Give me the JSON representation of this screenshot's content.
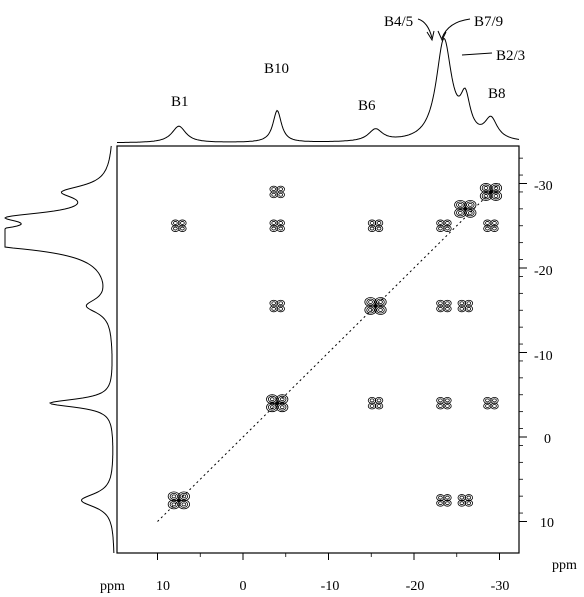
{
  "figure": {
    "peak_labels": [
      "B1",
      "B10",
      "B6",
      "B4/5",
      "B7/9",
      "B2/3",
      "B8"
    ],
    "x_axis": {
      "unit": "ppm",
      "ticks": [
        "10",
        "0",
        "-10",
        "-20",
        "-30"
      ]
    },
    "y_axis": {
      "unit": "ppm",
      "ticks": [
        "-30",
        "-20",
        "-10",
        "0",
        "10"
      ]
    }
  },
  "chart_data": {
    "type": "heatmap",
    "title": "",
    "xlabel": "ppm",
    "ylabel": "ppm",
    "xlim": [
      10,
      -35
    ],
    "ylim": [
      -35,
      10
    ],
    "x_ticks": [
      10,
      0,
      -10,
      -20,
      -30
    ],
    "y_ticks": [
      -30,
      -20,
      -10,
      0,
      10
    ],
    "peaks": [
      {
        "label": "B1",
        "shift": 7.5
      },
      {
        "label": "B10",
        "shift": -4
      },
      {
        "label": "B6",
        "shift": -15.5
      },
      {
        "label": "B4/5",
        "shift": -23.5
      },
      {
        "label": "B7/9",
        "shift": -23.5
      },
      {
        "label": "B2/3",
        "shift": -26
      },
      {
        "label": "B8",
        "shift": -29
      }
    ],
    "cross_peaks": [
      {
        "x": 7.5,
        "y": -25
      },
      {
        "x": 7.5,
        "y": 7.5
      },
      {
        "x": -4,
        "y": -29
      },
      {
        "x": -4,
        "y": -25
      },
      {
        "x": -4,
        "y": -15.5
      },
      {
        "x": -4,
        "y": -4
      },
      {
        "x": -15.5,
        "y": -25
      },
      {
        "x": -15.5,
        "y": -15.5
      },
      {
        "x": -15.5,
        "y": -4
      },
      {
        "x": -23.5,
        "y": -25
      },
      {
        "x": -23.5,
        "y": -15.5
      },
      {
        "x": -23.5,
        "y": -4
      },
      {
        "x": -23.5,
        "y": 7.5
      },
      {
        "x": -26,
        "y": -27
      },
      {
        "x": -26,
        "y": -15.5
      },
      {
        "x": -26,
        "y": 7.5
      },
      {
        "x": -29,
        "y": -29
      },
      {
        "x": -29,
        "y": -25
      },
      {
        "x": -29,
        "y": -4
      }
    ]
  }
}
